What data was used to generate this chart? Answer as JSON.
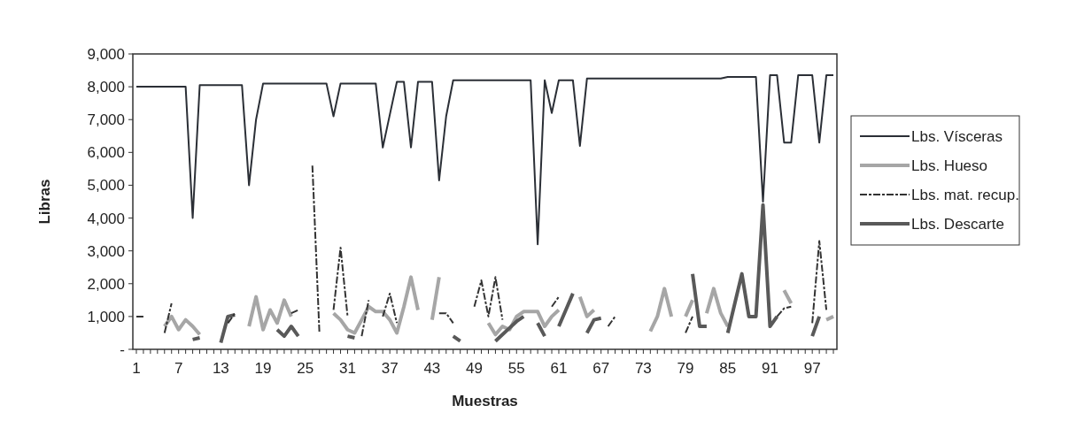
{
  "chart_data": {
    "type": "line",
    "xlabel": "Muestras",
    "ylabel": "Libras",
    "ylim": [
      0,
      9000
    ],
    "yticks": [
      {
        "value": 0,
        "label": "-"
      },
      {
        "value": 1000,
        "label": "1,000"
      },
      {
        "value": 2000,
        "label": "2,000"
      },
      {
        "value": 3000,
        "label": "3,000"
      },
      {
        "value": 4000,
        "label": "4,000"
      },
      {
        "value": 5000,
        "label": "5,000"
      },
      {
        "value": 6000,
        "label": "6,000"
      },
      {
        "value": 7000,
        "label": "7,000"
      },
      {
        "value": 8000,
        "label": "8,000"
      },
      {
        "value": 9000,
        "label": "9,000"
      }
    ],
    "grid": false,
    "legend": "right",
    "marker": "none",
    "categories": [
      "1",
      null,
      null,
      null,
      null,
      null,
      "7",
      null,
      null,
      null,
      null,
      null,
      "13",
      null,
      null,
      null,
      null,
      null,
      "19",
      null,
      null,
      null,
      null,
      null,
      "25",
      null,
      null,
      null,
      null,
      null,
      "31",
      null,
      null,
      null,
      null,
      null,
      "37",
      null,
      null,
      null,
      null,
      null,
      "43",
      null,
      null,
      null,
      null,
      null,
      "49",
      null,
      null,
      null,
      null,
      null,
      "55",
      null,
      null,
      null,
      null,
      null,
      "61",
      null,
      null,
      null,
      null,
      null,
      "67",
      null,
      null,
      null,
      null,
      null,
      "73",
      null,
      null,
      null,
      null,
      null,
      "79",
      null,
      null,
      null,
      null,
      null,
      "85",
      null,
      null,
      null,
      null,
      null,
      "91",
      null,
      null,
      null,
      null,
      null,
      "97",
      null,
      null,
      null
    ],
    "series": [
      {
        "name": "Lbs. Vísceras",
        "color": "#2b2f36",
        "line_style": "solid",
        "values": [
          8000,
          8000,
          8000,
          8000,
          8000,
          8000,
          8000,
          8000,
          4000,
          8050,
          8050,
          8050,
          8050,
          8050,
          8050,
          8050,
          5000,
          7000,
          8100,
          8100,
          8100,
          8100,
          8100,
          8100,
          8100,
          8100,
          8100,
          8100,
          7100,
          8100,
          8100,
          8100,
          8100,
          8100,
          8100,
          6150,
          7150,
          8150,
          8150,
          6150,
          8150,
          8150,
          8150,
          5150,
          7100,
          8200,
          8200,
          8200,
          8200,
          8200,
          8200,
          8200,
          8200,
          8200,
          8200,
          8200,
          8200,
          3200,
          8200,
          7200,
          8200,
          8200,
          8200,
          6200,
          8250,
          8250,
          8250,
          8250,
          8250,
          8250,
          8250,
          8250,
          8250,
          8250,
          8250,
          8250,
          8250,
          8250,
          8250,
          8250,
          8250,
          8250,
          8250,
          8250,
          8300,
          8300,
          8300,
          8300,
          8300,
          4500,
          8350,
          8350,
          6300,
          6300,
          8350,
          8350,
          8350,
          6300,
          8350,
          8350
        ]
      },
      {
        "name": "Lbs. Hueso",
        "color": "#a6a6a6",
        "line_style": "solid",
        "values": [
          null,
          null,
          null,
          null,
          700,
          1000,
          600,
          900,
          700,
          450,
          null,
          null,
          null,
          null,
          null,
          null,
          700,
          1600,
          600,
          1200,
          800,
          1500,
          1000,
          null,
          null,
          null,
          null,
          null,
          1100,
          900,
          600,
          500,
          900,
          1300,
          1150,
          1150,
          900,
          500,
          1300,
          2200,
          1200,
          null,
          900,
          2200,
          null,
          null,
          null,
          null,
          null,
          null,
          800,
          450,
          700,
          600,
          1000,
          1150,
          1150,
          1150,
          700,
          1000,
          1200,
          null,
          null,
          1600,
          1000,
          1200,
          null,
          null,
          null,
          null,
          null,
          null,
          null,
          550,
          1000,
          1850,
          1000,
          null,
          1000,
          1500,
          null,
          1100,
          1850,
          1100,
          700,
          null,
          null,
          null,
          null,
          null,
          null,
          null,
          1800,
          1400,
          null,
          null,
          null,
          null,
          900,
          1000
        ]
      },
      {
        "name": "Lbs. mat. recup.",
        "color": "#333333",
        "line_style": "dashed",
        "values": [
          1000,
          1000,
          null,
          null,
          500,
          1400,
          null,
          null,
          null,
          null,
          null,
          null,
          null,
          800,
          1100,
          null,
          null,
          null,
          null,
          null,
          null,
          null,
          1100,
          1200,
          null,
          5600,
          500,
          null,
          1200,
          3100,
          1000,
          null,
          400,
          1500,
          null,
          1000,
          1700,
          800,
          null,
          null,
          null,
          null,
          null,
          1100,
          1100,
          800,
          null,
          null,
          1300,
          2100,
          1000,
          2200,
          900,
          null,
          null,
          null,
          null,
          null,
          null,
          1300,
          1600,
          null,
          null,
          null,
          null,
          null,
          null,
          700,
          1000,
          null,
          null,
          null,
          null,
          null,
          null,
          null,
          null,
          null,
          500,
          1000,
          null,
          null,
          null,
          null,
          null,
          null,
          null,
          null,
          null,
          null,
          null,
          1000,
          1250,
          1300,
          null,
          null,
          800,
          3300,
          1200,
          null
        ]
      },
      {
        "name": "Lbs. Descarte",
        "color": "#595959",
        "line_style": "solid",
        "values": [
          null,
          null,
          null,
          null,
          null,
          null,
          null,
          null,
          300,
          350,
          null,
          null,
          200,
          1000,
          1050,
          null,
          null,
          null,
          null,
          null,
          600,
          400,
          700,
          400,
          null,
          null,
          null,
          null,
          null,
          null,
          400,
          350,
          null,
          null,
          null,
          null,
          null,
          null,
          null,
          null,
          null,
          null,
          null,
          null,
          null,
          400,
          250,
          null,
          null,
          null,
          null,
          250,
          450,
          650,
          850,
          1000,
          null,
          800,
          400,
          null,
          700,
          1200,
          1700,
          null,
          500,
          900,
          950,
          null,
          null,
          null,
          null,
          null,
          null,
          null,
          null,
          null,
          null,
          null,
          null,
          2300,
          700,
          700,
          null,
          null,
          500,
          1400,
          2300,
          1000,
          1000,
          4400,
          700,
          1000,
          null,
          null,
          null,
          null,
          400,
          1000,
          null,
          null
        ]
      }
    ]
  }
}
